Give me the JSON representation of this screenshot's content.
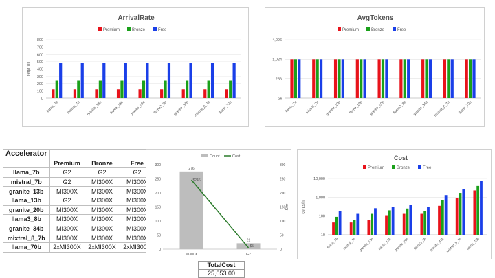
{
  "colors": {
    "premium": "#e8131b",
    "bronze": "#1aa01a",
    "free": "#1a3fe8",
    "count": "#bdbdbd",
    "cost": "#2a7a2a"
  },
  "legend3": [
    "Premium",
    "Bronze",
    "Free"
  ],
  "arrival_chart": {
    "chart_data": {
      "type": "bar",
      "title": "ArrivalRate",
      "ylabel": "req/min",
      "ylim": [
        0,
        800
      ],
      "yticks": [
        "0",
        "100",
        "200",
        "300",
        "400",
        "500",
        "600",
        "700",
        "800"
      ],
      "categories": [
        "llama_7b",
        "mistral_7b",
        "granite_13b",
        "llama_13b",
        "granite_20b",
        "llama3_8b",
        "granite_34b",
        "mixtral_8_7b",
        "llama_70b"
      ],
      "series": [
        {
          "name": "Premium",
          "values": [
            120,
            120,
            120,
            120,
            120,
            120,
            120,
            120,
            120
          ]
        },
        {
          "name": "Bronze",
          "values": [
            240,
            240,
            240,
            240,
            240,
            240,
            240,
            240,
            240
          ]
        },
        {
          "name": "Free",
          "values": [
            480,
            480,
            480,
            480,
            480,
            480,
            480,
            480,
            480
          ]
        }
      ]
    }
  },
  "tokens_chart": {
    "chart_data": {
      "type": "bar",
      "title": "AvgTokens",
      "yscale": "log",
      "ylim": [
        64,
        4096
      ],
      "yticks": [
        "64",
        "256",
        "1,024",
        "4,096"
      ],
      "categories": [
        "llama_7b",
        "mistral_7b",
        "granite_13b",
        "llama_13b",
        "granite_20b",
        "llama3_8b",
        "granite_34b",
        "mixtral_8_7b",
        "llama_70b"
      ],
      "series": [
        {
          "name": "Premium",
          "values": [
            1024,
            1024,
            1024,
            1024,
            1024,
            1024,
            1024,
            1024,
            1024
          ]
        },
        {
          "name": "Bronze",
          "values": [
            1024,
            1024,
            1024,
            1024,
            1024,
            1024,
            1024,
            1024,
            1024
          ]
        },
        {
          "name": "Free",
          "values": [
            1024,
            1024,
            1024,
            1024,
            1024,
            1024,
            1024,
            1024,
            1024
          ]
        }
      ]
    }
  },
  "accelerator_table": {
    "title": "Accelerator",
    "columns": [
      "Premium",
      "Bronze",
      "Free"
    ],
    "rows": [
      {
        "model": "llama_7b",
        "values": [
          "G2",
          "G2",
          "G2"
        ]
      },
      {
        "model": "mistral_7b",
        "values": [
          "G2",
          "MI300X",
          "MI300X"
        ]
      },
      {
        "model": "granite_13b",
        "values": [
          "MI300X",
          "MI300X",
          "MI300X"
        ]
      },
      {
        "model": "llama_13b",
        "values": [
          "G2",
          "MI300X",
          "MI300X"
        ]
      },
      {
        "model": "granite_20b",
        "values": [
          "MI300X",
          "MI300X",
          "MI300X"
        ]
      },
      {
        "model": "llama3_8b",
        "values": [
          "MI300X",
          "MI300X",
          "MI300X"
        ]
      },
      {
        "model": "granite_34b",
        "values": [
          "MI300X",
          "MI300X",
          "MI300X"
        ]
      },
      {
        "model": "mixtral_8_7b",
        "values": [
          "MI300X",
          "MI300X",
          "MI300X"
        ]
      },
      {
        "model": "llama_70b",
        "values": [
          "2xMI300X",
          "2xMI300X",
          "2xMI300X"
        ]
      }
    ]
  },
  "count_cost_chart": {
    "chart_data": {
      "type": "bar",
      "legend": [
        "Count",
        "Cost"
      ],
      "categories": [
        "MI300X",
        "G2"
      ],
      "count_values": [
        276,
        21
      ],
      "cost_values": [
        246,
        5
      ],
      "count_labels": [
        "276",
        "21"
      ],
      "cost_labels": [
        "$246",
        "$5"
      ],
      "ylim_left": [
        0,
        300
      ],
      "ylim_right": [
        0,
        300
      ],
      "yticks": [
        "0",
        "50",
        "100",
        "150",
        "200",
        "250",
        "300"
      ],
      "ylabel_right": "$/hr"
    }
  },
  "cost_chart": {
    "chart_data": {
      "type": "bar",
      "title": "Cost",
      "ylabel": "cents/hr",
      "yscale": "log",
      "ylim": [
        10,
        10000
      ],
      "yticks": [
        "10",
        "100",
        "1,000",
        "10,000"
      ],
      "categories": [
        "llama_7b",
        "mistral_7b",
        "granite_13b",
        "llama_13b",
        "granite_20b",
        "llama3_8b",
        "granite_34b",
        "mixtral_8_7b",
        "llama_70b"
      ],
      "series": [
        {
          "name": "Premium",
          "values": [
            45,
            45,
            60,
            110,
            130,
            130,
            350,
            900,
            2300
          ]
        },
        {
          "name": "Bronze",
          "values": [
            90,
            60,
            130,
            200,
            250,
            190,
            700,
            1700,
            4000
          ]
        },
        {
          "name": "Free",
          "values": [
            180,
            130,
            260,
            300,
            380,
            300,
            1300,
            2800,
            7500
          ]
        }
      ]
    }
  },
  "total_cost": {
    "label": "TotalCost",
    "value": "25,053.00"
  }
}
